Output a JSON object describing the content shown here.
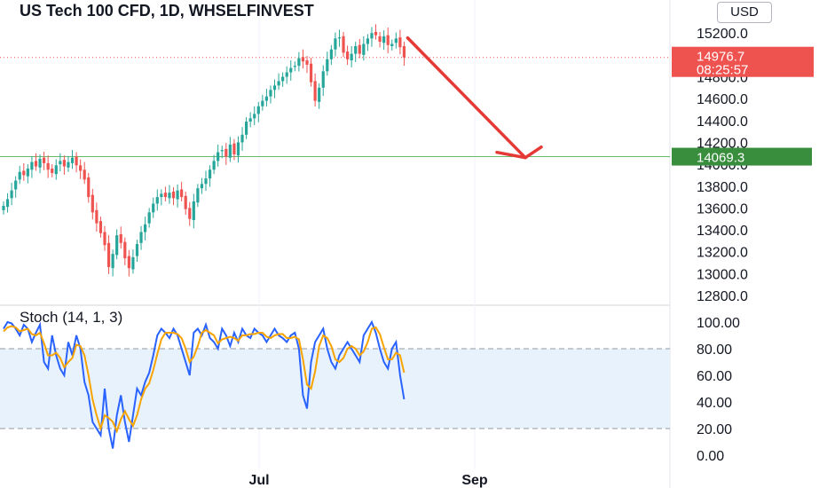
{
  "title": "US Tech 100 CFD, 1D, WHSELFINVEST",
  "currency": "USD",
  "colors": {
    "up": "#26a69a",
    "down": "#ef5350",
    "stoch_k": "#2962ff",
    "stoch_d": "#f7a400",
    "arrow": "#e53935",
    "level": "#388e3c",
    "band": "#e8f2fd"
  },
  "chart_data": [
    {
      "type": "candlestick",
      "title": "US Tech 100 CFD, 1D, WHSELFINVEST",
      "ylim": [
        12700,
        15400
      ],
      "y_ticks": [
        12800,
        13000,
        13200,
        13400,
        13600,
        13800,
        14000,
        14200,
        14400,
        14600,
        14800,
        15000,
        15200
      ],
      "y_tick_labels": [
        "12800.0",
        "13000.0",
        "13200.0",
        "13400.0",
        "13600.0",
        "13800.0",
        "14000.0",
        "14200.0",
        "14400.0",
        "14600.0",
        "14800.0",
        "15000.0",
        "15200.0"
      ],
      "x_tick_labels": [
        "Jul",
        "Sep"
      ],
      "last_price": 14976.7,
      "last_price_label": "14976.7",
      "countdown": "08:25:57",
      "horizontal_level": 14069.3,
      "horizontal_level_label": "14069.3",
      "projection_arrow": {
        "from": 15155,
        "to": 14060
      },
      "close": [
        13620,
        13680,
        13760,
        13850,
        13930,
        13900,
        13960,
        14020,
        13980,
        14050,
        14010,
        13950,
        13920,
        13990,
        14030,
        13980,
        14020,
        14060,
        13990,
        13940,
        13860,
        13700,
        13560,
        13460,
        13370,
        13260,
        13060,
        13180,
        13350,
        13280,
        13140,
        13050,
        13150,
        13270,
        13380,
        13450,
        13560,
        13640,
        13700,
        13730,
        13700,
        13740,
        13690,
        13760,
        13700,
        13590,
        13500,
        13660,
        13780,
        13820,
        13870,
        13950,
        14030,
        14110,
        14130,
        14070,
        14180,
        14090,
        14200,
        14270,
        14390,
        14420,
        14460,
        14530,
        14580,
        14620,
        14680,
        14720,
        14760,
        14800,
        14840,
        14880,
        14900,
        14970,
        14940,
        14910,
        14750,
        14580,
        14700,
        14850,
        14960,
        15050,
        15150,
        15160,
        15020,
        14960,
        15010,
        15080,
        15010,
        15100,
        15150,
        15200,
        15180,
        15120,
        15170,
        15090,
        15100,
        15150,
        15070,
        14976.7
      ],
      "open": [
        13580,
        13610,
        13690,
        13770,
        13860,
        13940,
        13890,
        13950,
        14030,
        13970,
        14060,
        14010,
        13960,
        13910,
        14000,
        14040,
        13970,
        14010,
        14070,
        13990,
        13950,
        13880,
        13720,
        13580,
        13480,
        13380,
        13280,
        13050,
        13170,
        13360,
        13290,
        13160,
        13040,
        13160,
        13280,
        13380,
        13460,
        13560,
        13640,
        13700,
        13740,
        13690,
        13750,
        13680,
        13770,
        13710,
        13600,
        13490,
        13650,
        13780,
        13820,
        13870,
        13950,
        14030,
        14120,
        14140,
        14060,
        14190,
        14080,
        14200,
        14270,
        14390,
        14420,
        14460,
        14530,
        14580,
        14620,
        14680,
        14720,
        14760,
        14800,
        14840,
        14890,
        14900,
        14980,
        14950,
        14920,
        14760,
        14570,
        14700,
        14850,
        14960,
        15050,
        15150,
        15170,
        15030,
        14950,
        15010,
        15090,
        15000,
        15100,
        15150,
        15210,
        15170,
        15110,
        15180,
        15080,
        15110,
        15160,
        15080
      ]
    },
    {
      "type": "line",
      "title": "Stoch (14, 1, 3)",
      "ylim": [
        -10,
        110
      ],
      "y_ticks": [
        0,
        20,
        40,
        60,
        80,
        100
      ],
      "y_tick_labels": [
        "0.00",
        "20.00",
        "40.00",
        "60.00",
        "80.00",
        "100.00"
      ],
      "band": [
        20,
        80
      ],
      "series": [
        {
          "name": "",
          "values": [
            95,
            100,
            99,
            95,
            90,
            98,
            95,
            85,
            92,
            98,
            70,
            65,
            90,
            75,
            65,
            60,
            85,
            75,
            90,
            80,
            55,
            45,
            25,
            20,
            15,
            50,
            20,
            5,
            30,
            45,
            25,
            10,
            30,
            50,
            45,
            55,
            62,
            75,
            90,
            95,
            92,
            88,
            95,
            90,
            80,
            70,
            60,
            92,
            95,
            90,
            98,
            88,
            85,
            80,
            95,
            90,
            82,
            92,
            85,
            95,
            90,
            88,
            95,
            92,
            90,
            85,
            90,
            95,
            90,
            88,
            85,
            90,
            92,
            80,
            45,
            35,
            70,
            85,
            90,
            95,
            80,
            70,
            65,
            75,
            80,
            85,
            80,
            75,
            70,
            90,
            95,
            100,
            92,
            80,
            70,
            65,
            80,
            85,
            60,
            42
          ]
        },
        {
          "name": "",
          "values": [
            93,
            96,
            97,
            96,
            93,
            94,
            95,
            91,
            90,
            92,
            84,
            75,
            75,
            77,
            73,
            66,
            70,
            73,
            83,
            82,
            75,
            60,
            42,
            30,
            20,
            30,
            28,
            25,
            18,
            27,
            33,
            27,
            22,
            30,
            42,
            50,
            54,
            64,
            76,
            87,
            92,
            92,
            92,
            91,
            88,
            80,
            70,
            74,
            82,
            92,
            94,
            92,
            90,
            84,
            87,
            88,
            89,
            88,
            86,
            90,
            90,
            91,
            91,
            92,
            92,
            89,
            88,
            90,
            91,
            91,
            88,
            88,
            89,
            87,
            72,
            53,
            50,
            63,
            82,
            90,
            88,
            82,
            72,
            70,
            73,
            80,
            82,
            80,
            75,
            78,
            85,
            95,
            96,
            91,
            81,
            72,
            72,
            77,
            75,
            62
          ]
        }
      ]
    }
  ]
}
